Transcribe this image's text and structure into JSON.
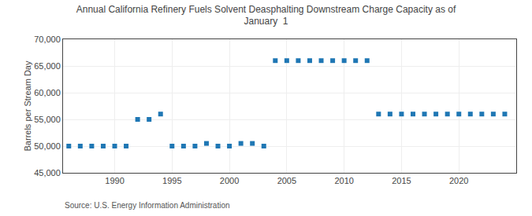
{
  "chart_data": {
    "type": "scatter",
    "title": "Annual California Refinery Fuels Solvent Deasphalting Downstream Charge Capacity as of\nJanuary  1",
    "ylabel": "Barrels per Stream Day",
    "annotations": [
      "Source: U.S. Energy Information Administration"
    ],
    "marker": "square",
    "grid": true,
    "x": [
      1986,
      1987,
      1988,
      1989,
      1990,
      1991,
      1992,
      1993,
      1994,
      1995,
      1996,
      1997,
      1998,
      1999,
      2000,
      2001,
      2002,
      2003,
      2004,
      2005,
      2006,
      2007,
      2008,
      2009,
      2010,
      2011,
      2012,
      2013,
      2014,
      2015,
      2016,
      2017,
      2018,
      2019,
      2020,
      2021,
      2022,
      2023,
      2024
    ],
    "values": [
      50000,
      50000,
      50000,
      50000,
      50000,
      50000,
      55000,
      55000,
      56000,
      50000,
      50000,
      50000,
      50500,
      50000,
      50000,
      50500,
      50500,
      50000,
      66000,
      66000,
      66000,
      66000,
      66000,
      66000,
      66000,
      66000,
      66000,
      56000,
      56000,
      56000,
      56000,
      56000,
      56000,
      56000,
      56000,
      56000,
      56000,
      56000,
      56000
    ],
    "xlim": [
      1985.5,
      2025
    ],
    "xticks": [
      1990,
      1995,
      2000,
      2005,
      2010,
      2015,
      2020
    ],
    "ylim": [
      45000,
      70000
    ],
    "yticks": [
      {
        "value": 45000,
        "label": "45,000"
      },
      {
        "value": 50000,
        "label": "50,000"
      },
      {
        "value": 55000,
        "label": "55,000"
      },
      {
        "value": 60000,
        "label": "60,000"
      },
      {
        "value": 65000,
        "label": "65,000"
      },
      {
        "value": 70000,
        "label": "70,000"
      }
    ]
  }
}
